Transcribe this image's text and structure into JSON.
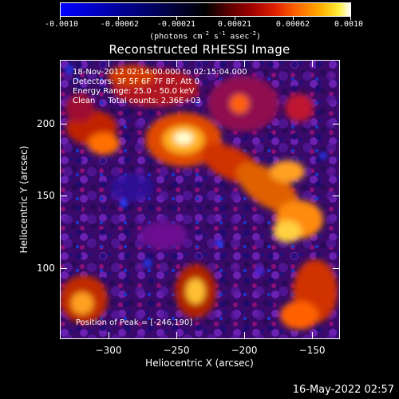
{
  "colorbar": {
    "tick_labels": [
      "-0.0010",
      "-0.00062",
      "-0.00021",
      "0.00021",
      "0.00062",
      "0.0010"
    ],
    "unit_text": "(photons cm",
    "unit_exp1": "-2",
    "unit_mid": " s",
    "unit_exp2": "-1",
    "unit_mid2": " asec",
    "unit_exp3": "-2",
    "unit_end": ")"
  },
  "title": "Reconstructed RHESSI Image",
  "info": {
    "line1": "18-Nov-2012 02:14:00.000 to 02:15:04.000",
    "line2": "Detectors: 3F 5F 6F 7F 8F, Att 0",
    "line3": "Energy Range: 25.0 - 50.0 keV",
    "line4": "Clean     Total counts: 2.36E+03",
    "peak": "Position of Peak = [-246,190]"
  },
  "axes": {
    "x_label": "Heliocentric X (arcsec)",
    "y_label": "Heliocentric Y (arcsec)",
    "x_ticks": [
      "−300",
      "−250",
      "−200",
      "−150"
    ],
    "y_ticks": [
      "200",
      "150",
      "100"
    ]
  },
  "timestamp": "16-May-2022 02:57",
  "colors": {
    "background": "#000000",
    "foreground": "#ffffff"
  }
}
